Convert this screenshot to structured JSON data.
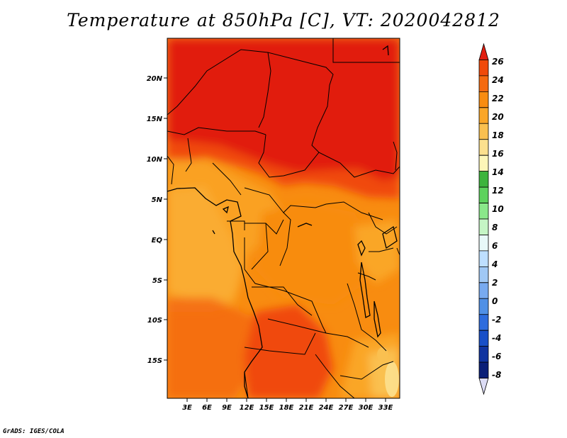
{
  "title": "Temperature at 850hPa [C], VT: 2020042812",
  "credit": "GrADS: IGES/COLA",
  "map": {
    "lat_labels": [
      "20N",
      "15N",
      "10N",
      "5N",
      "EQ",
      "5S",
      "10S",
      "15S"
    ],
    "lon_labels": [
      "3E",
      "6E",
      "9E",
      "12E",
      "15E",
      "18E",
      "21E",
      "24E",
      "27E",
      "30E",
      "33E"
    ]
  },
  "colorbar": {
    "labels": [
      "26",
      "24",
      "22",
      "20",
      "18",
      "16",
      "14",
      "12",
      "10",
      "8",
      "6",
      "4",
      "2",
      "0",
      "-2",
      "-4",
      "-6",
      "-8"
    ],
    "colors": [
      "#e11e10",
      "#f04a0a",
      "#f56a10",
      "#f88c10",
      "#faa628",
      "#fac050",
      "#fce08e",
      "#fdf6b8",
      "#3db43d",
      "#5dd25d",
      "#8ae88a",
      "#c5f5c5",
      "#e8f8f8",
      "#bedfff",
      "#a0c8f5",
      "#78aaf0",
      "#5090e6",
      "#2e6cdd",
      "#1950c8",
      "#1034a0",
      "#0a1f78",
      "#dcdcf5"
    ]
  }
}
